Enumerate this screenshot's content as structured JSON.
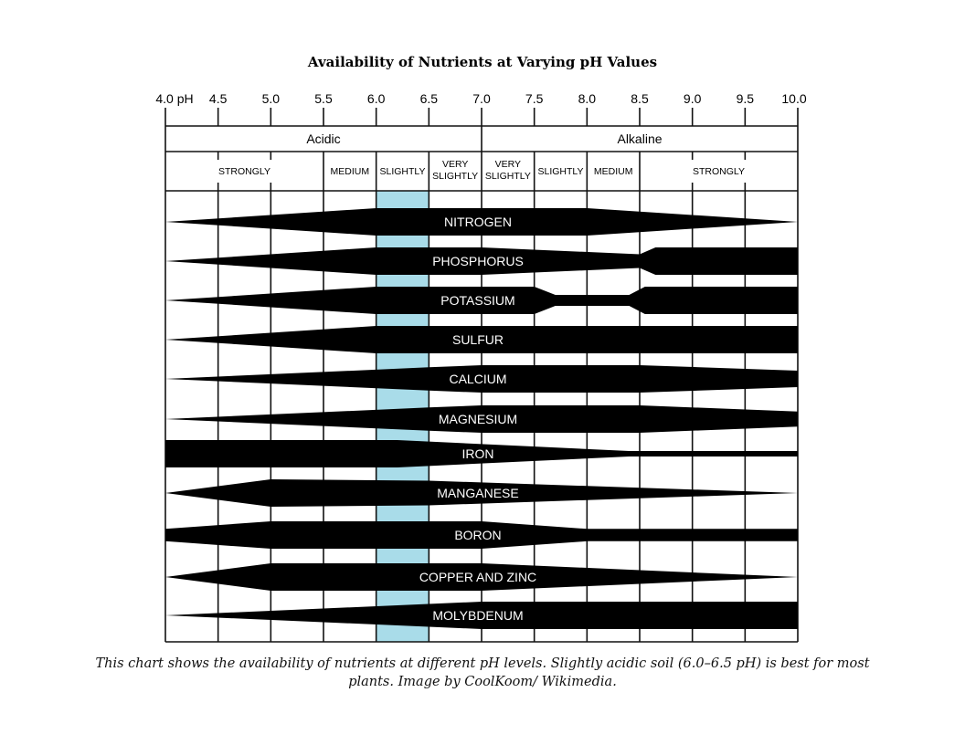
{
  "chart_data": {
    "type": "area",
    "title": "Availability of Nutrients at Varying pH Values",
    "xlabel": "pH",
    "xlim": [
      4.0,
      10.0
    ],
    "x_ticks": [
      {
        "value": 4.0,
        "label": "4.0 pH"
      },
      {
        "value": 4.5,
        "label": "4.5"
      },
      {
        "value": 5.0,
        "label": "5.0"
      },
      {
        "value": 5.5,
        "label": "5.5"
      },
      {
        "value": 6.0,
        "label": "6.0"
      },
      {
        "value": 6.5,
        "label": "6.5"
      },
      {
        "value": 7.0,
        "label": "7.0"
      },
      {
        "value": 7.5,
        "label": "7.5"
      },
      {
        "value": 8.0,
        "label": "8.0"
      },
      {
        "value": 8.5,
        "label": "8.5"
      },
      {
        "value": 9.0,
        "label": "9.0"
      },
      {
        "value": 9.5,
        "label": "9.5"
      },
      {
        "value": 10.0,
        "label": "10.0"
      }
    ],
    "groups": [
      {
        "label": "Acidic",
        "range": [
          4.0,
          7.0
        ]
      },
      {
        "label": "Alkaline",
        "range": [
          7.0,
          10.0
        ]
      }
    ],
    "subgroups": [
      {
        "label": "STRONGLY",
        "range": [
          4.0,
          5.5
        ]
      },
      {
        "label": "MEDIUM",
        "range": [
          5.5,
          6.0
        ]
      },
      {
        "label": "SLIGHTLY",
        "range": [
          6.0,
          6.5
        ]
      },
      {
        "label": "VERY SLIGHTLY",
        "range": [
          6.5,
          7.0
        ]
      },
      {
        "label": "VERY SLIGHTLY",
        "range": [
          7.0,
          7.5
        ]
      },
      {
        "label": "SLIGHTLY",
        "range": [
          7.5,
          8.0
        ]
      },
      {
        "label": "MEDIUM",
        "range": [
          8.0,
          8.5
        ]
      },
      {
        "label": "STRONGLY",
        "range": [
          8.5,
          10.0
        ]
      }
    ],
    "highlight": {
      "range": [
        6.0,
        6.5
      ],
      "color": "#a9dce9"
    },
    "band_color": "#000000",
    "series_note": "availability is relative band thickness (0-1) at each pH",
    "series": [
      {
        "name": "NITROGEN",
        "points": [
          [
            4.0,
            0
          ],
          [
            6.0,
            1
          ],
          [
            8.0,
            1
          ],
          [
            10.0,
            0
          ]
        ]
      },
      {
        "name": "PHOSPHORUS",
        "points": [
          [
            4.0,
            0
          ],
          [
            6.0,
            1
          ],
          [
            7.0,
            1
          ],
          [
            8.5,
            0.5
          ],
          [
            8.65,
            1
          ],
          [
            10.0,
            1
          ]
        ]
      },
      {
        "name": "POTASSIUM",
        "points": [
          [
            4.0,
            0
          ],
          [
            6.0,
            1
          ],
          [
            7.5,
            1
          ],
          [
            7.7,
            0.4
          ],
          [
            8.4,
            0.4
          ],
          [
            8.55,
            1
          ],
          [
            10.0,
            1
          ]
        ]
      },
      {
        "name": "SULFUR",
        "points": [
          [
            4.0,
            0
          ],
          [
            6.0,
            1
          ],
          [
            10.0,
            1
          ]
        ]
      },
      {
        "name": "CALCIUM",
        "points": [
          [
            4.0,
            0
          ],
          [
            6.5,
            0.85
          ],
          [
            7.0,
            1
          ],
          [
            8.5,
            1
          ],
          [
            10.0,
            0.6
          ]
        ]
      },
      {
        "name": "MAGNESIUM",
        "points": [
          [
            4.0,
            0
          ],
          [
            6.5,
            0.85
          ],
          [
            7.0,
            1
          ],
          [
            8.5,
            1
          ],
          [
            10.0,
            0.55
          ]
        ]
      },
      {
        "name": "IRON",
        "points": [
          [
            4.0,
            1
          ],
          [
            6.2,
            1
          ],
          [
            8.4,
            0.2
          ],
          [
            10.0,
            0.2
          ]
        ]
      },
      {
        "name": "MANGANESE",
        "points": [
          [
            4.0,
            0
          ],
          [
            5.0,
            1
          ],
          [
            6.5,
            0.9
          ],
          [
            10.0,
            0
          ]
        ]
      },
      {
        "name": "BORON",
        "points": [
          [
            4.0,
            0.45
          ],
          [
            5.0,
            1
          ],
          [
            7.0,
            1
          ],
          [
            8.0,
            0.45
          ],
          [
            10.0,
            0.45
          ]
        ]
      },
      {
        "name": "COPPER AND ZINC",
        "points": [
          [
            4.0,
            0
          ],
          [
            5.0,
            1
          ],
          [
            7.0,
            1
          ],
          [
            10.0,
            0
          ]
        ]
      },
      {
        "name": "MOLYBDENUM",
        "points": [
          [
            4.0,
            0
          ],
          [
            7.0,
            1
          ],
          [
            10.0,
            1
          ]
        ]
      }
    ]
  },
  "caption": {
    "line1": "This chart shows the availability of nutrients at different pH levels. Slightly acidic soil (6.0–6.5 pH) is best for most",
    "line2": "plants. Image by CoolKoom/ Wikimedia."
  }
}
